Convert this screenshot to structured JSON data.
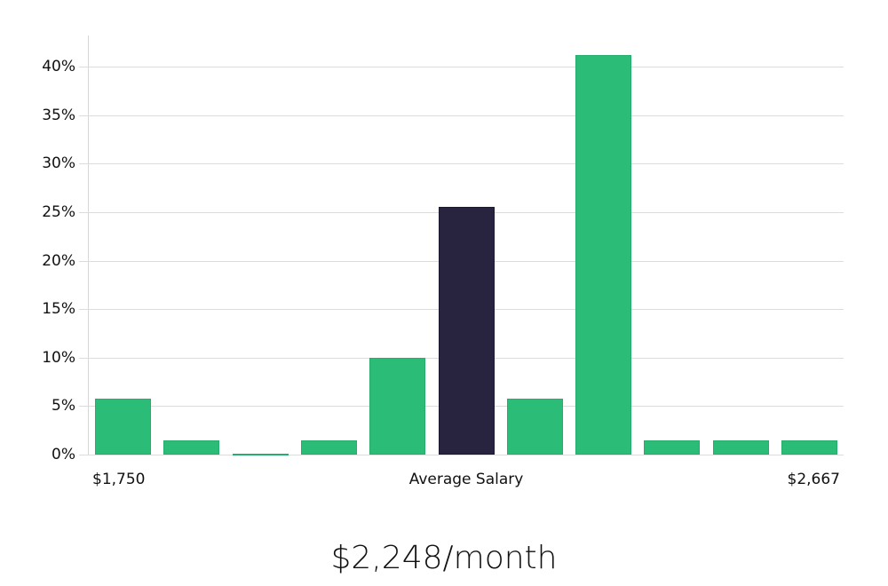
{
  "chart_data": {
    "type": "bar",
    "title": "",
    "xlabel": "Average Salary",
    "ylabel": "",
    "ylim": [
      0,
      40
    ],
    "y_ticks": [
      "0%",
      "5%",
      "10%",
      "15%",
      "20%",
      "25%",
      "30%",
      "35%",
      "40%"
    ],
    "x_range_labels": {
      "min": "$1,750",
      "center": "Average Salary",
      "max": "$2,667"
    },
    "categories": [
      "Bin 1",
      "Bin 2",
      "Bin 3",
      "Bin 4",
      "Bin 5",
      "Bin 6",
      "Bin 7",
      "Bin 8",
      "Bin 9",
      "Bin 10",
      "Bin 11"
    ],
    "values": [
      5.8,
      1.5,
      0.1,
      1.5,
      10.0,
      25.5,
      5.8,
      41.2,
      1.5,
      1.5,
      1.5
    ],
    "highlight_index": 5,
    "grid": true,
    "legend": null
  },
  "colors": {
    "bar": "#2bbd77",
    "highlight": "#28243f",
    "grid": "#dcdcdc"
  },
  "footer": {
    "salary_text": "$2,248/month"
  }
}
